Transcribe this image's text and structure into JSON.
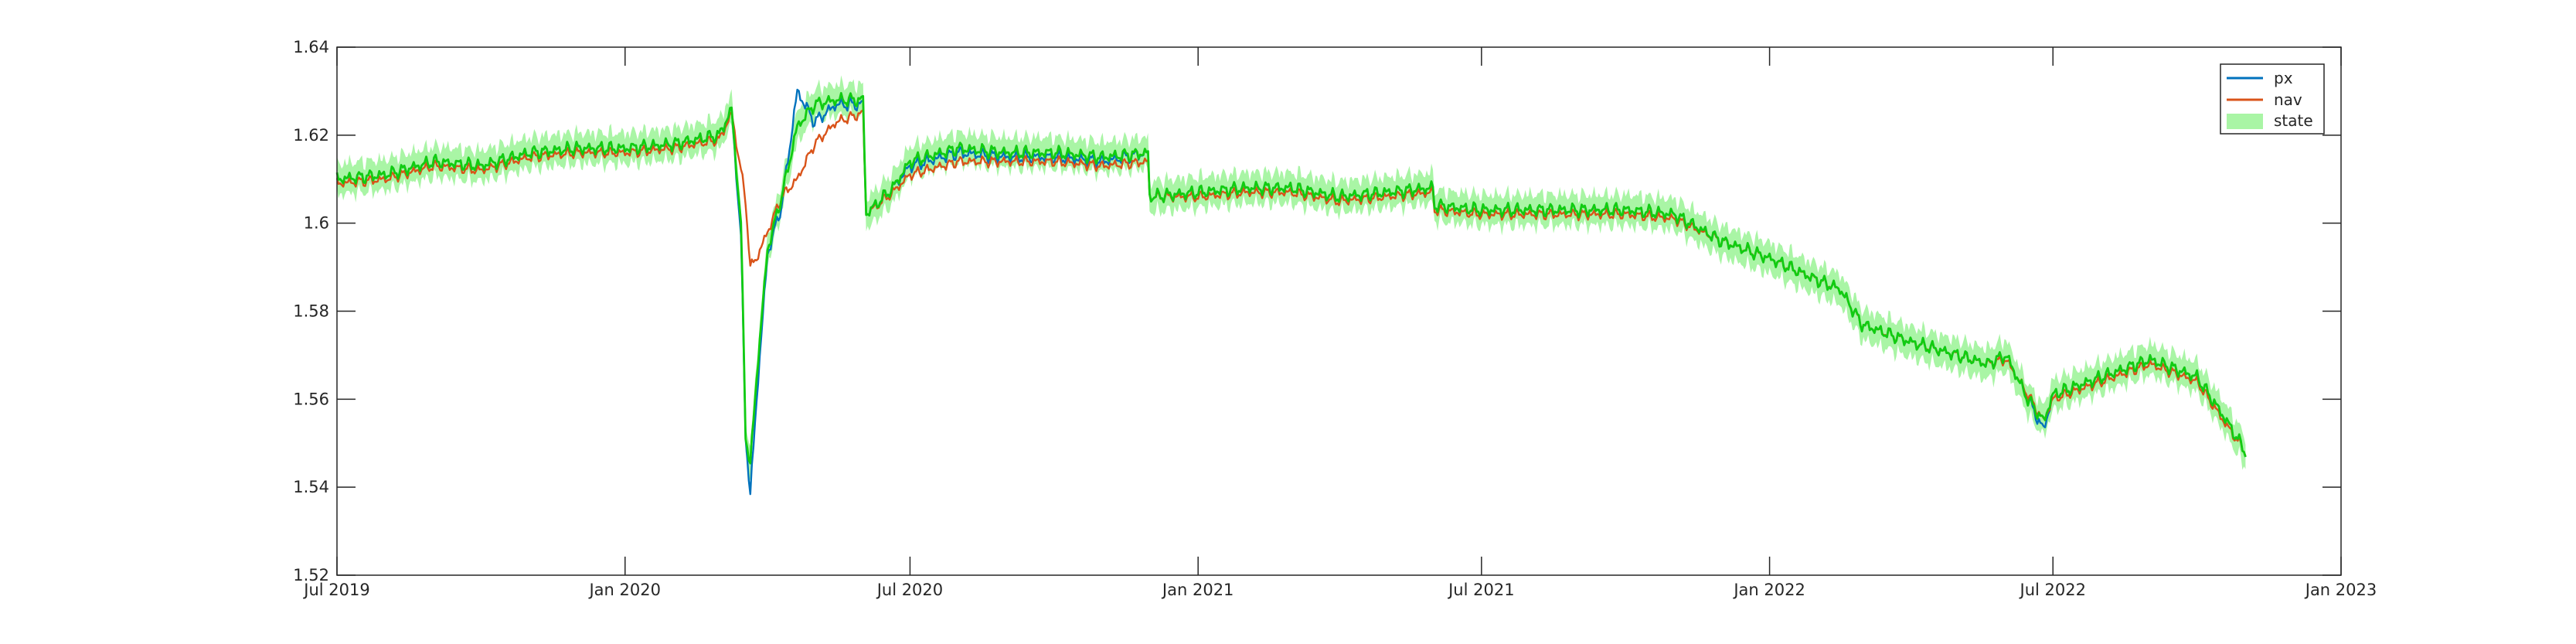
{
  "chart_data": {
    "type": "line",
    "title": "",
    "xlabel": "",
    "ylabel": "",
    "xlim": [
      "2019-07-01",
      "2023-01-01"
    ],
    "ylim": [
      1.52,
      1.64
    ],
    "grid": false,
    "legend_placement": "top-right",
    "x_tick_labels": [
      "Jul 2019",
      "Jan 2020",
      "Jul 2020",
      "Jan 2021",
      "Jul 2021",
      "Jan 2022",
      "Jul 2022",
      "Jan 2023"
    ],
    "y_tick_labels": [
      "1.52",
      "1.54",
      "1.56",
      "1.58",
      "1.6",
      "1.62",
      "1.64"
    ],
    "legend": [
      "px",
      "nav",
      "state"
    ],
    "colors": {
      "px": "#0072BD",
      "nav": "#D95319",
      "state_line": "#11CC11",
      "state_band": "#A9F5A5"
    },
    "anchors": {
      "x": [
        "2019-07-01",
        "2019-08-01",
        "2019-09-01",
        "2019-10-01",
        "2019-11-01",
        "2019-12-01",
        "2020-01-01",
        "2020-02-01",
        "2020-03-01",
        "2020-03-04",
        "2020-03-09",
        "2020-03-15",
        "2020-03-18",
        "2020-03-21",
        "2020-03-25",
        "2020-04-01",
        "2020-04-10",
        "2020-04-20",
        "2020-05-01",
        "2020-05-15",
        "2020-06-01",
        "2020-06-03",
        "2020-06-20",
        "2020-07-01",
        "2020-08-01",
        "2020-09-01",
        "2020-10-01",
        "2020-11-01",
        "2020-11-30",
        "2020-12-01",
        "2021-01-01",
        "2021-02-01",
        "2021-03-01",
        "2021-04-01",
        "2021-05-01",
        "2021-05-31",
        "2021-06-01",
        "2021-07-01",
        "2021-08-01",
        "2021-09-01",
        "2021-10-01",
        "2021-11-01",
        "2021-12-01",
        "2022-01-01",
        "2022-02-01",
        "2022-02-15",
        "2022-03-01",
        "2022-04-01",
        "2022-05-01",
        "2022-05-20",
        "2022-06-01",
        "2022-06-15",
        "2022-06-25",
        "2022-07-01",
        "2022-08-01",
        "2022-09-01",
        "2022-10-01",
        "2022-10-20",
        "2022-11-01"
      ],
      "px": [
        1.61,
        1.611,
        1.614,
        1.613,
        1.616,
        1.617,
        1.617,
        1.618,
        1.62,
        1.622,
        1.626,
        1.597,
        1.552,
        1.538,
        1.56,
        1.593,
        1.604,
        1.63,
        1.623,
        1.627,
        1.627,
        1.602,
        1.608,
        1.613,
        1.616,
        1.615,
        1.615,
        1.614,
        1.616,
        1.606,
        1.607,
        1.608,
        1.608,
        1.606,
        1.607,
        1.608,
        1.604,
        1.603,
        1.603,
        1.603,
        1.603,
        1.602,
        1.596,
        1.592,
        1.587,
        1.585,
        1.577,
        1.573,
        1.57,
        1.568,
        1.57,
        1.56,
        1.553,
        1.561,
        1.565,
        1.569,
        1.565,
        1.555,
        1.548
      ],
      "nav": [
        1.609,
        1.61,
        1.613,
        1.612,
        1.615,
        1.616,
        1.616,
        1.617,
        1.619,
        1.621,
        1.625,
        1.612,
        1.605,
        1.59,
        1.592,
        1.598,
        1.606,
        1.61,
        1.618,
        1.623,
        1.625,
        1.602,
        1.607,
        1.611,
        1.614,
        1.614,
        1.614,
        1.613,
        1.614,
        1.606,
        1.606,
        1.607,
        1.607,
        1.605,
        1.606,
        1.607,
        1.603,
        1.602,
        1.602,
        1.602,
        1.602,
        1.601,
        1.596,
        1.592,
        1.587,
        1.585,
        1.577,
        1.573,
        1.57,
        1.568,
        1.569,
        1.561,
        1.555,
        1.56,
        1.564,
        1.568,
        1.564,
        1.554,
        1.548
      ],
      "state": [
        1.61,
        1.611,
        1.614,
        1.613,
        1.616,
        1.617,
        1.617,
        1.618,
        1.62,
        1.622,
        1.626,
        1.6,
        1.552,
        1.545,
        1.565,
        1.594,
        1.606,
        1.622,
        1.627,
        1.628,
        1.628,
        1.602,
        1.608,
        1.614,
        1.617,
        1.616,
        1.616,
        1.615,
        1.616,
        1.606,
        1.607,
        1.608,
        1.608,
        1.606,
        1.607,
        1.608,
        1.604,
        1.603,
        1.603,
        1.603,
        1.603,
        1.602,
        1.596,
        1.592,
        1.587,
        1.585,
        1.577,
        1.573,
        1.57,
        1.568,
        1.57,
        1.56,
        1.555,
        1.561,
        1.565,
        1.569,
        1.565,
        1.555,
        1.548
      ],
      "band_halfwidth": 0.0035
    }
  }
}
